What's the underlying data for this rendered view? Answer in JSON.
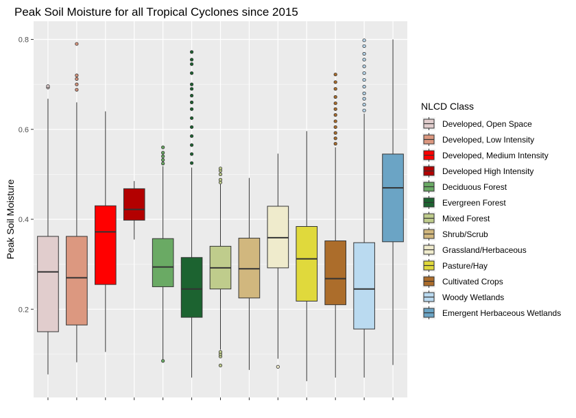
{
  "chart_data": {
    "type": "boxplot",
    "title": "Peak Soil Moisture for all Tropical Cyclones since 2015",
    "xlabel": "",
    "ylabel": "Peak Soil Moisture",
    "ylim": [
      0.0,
      0.83
    ],
    "yticks": [
      0.2,
      0.4,
      0.6,
      0.8
    ],
    "ytick_labels": [
      "0.2",
      "0.4",
      "0.6",
      "0.8"
    ],
    "grid": true,
    "panel_background": "#ebebeb",
    "grid_color": "#ffffff",
    "legend": {
      "title": "NLCD Class",
      "placement": "right"
    },
    "series": [
      {
        "name": "Developed, Open Space",
        "color": "#e1cdcd",
        "whisker_low": 0.055,
        "q1": 0.15,
        "median": 0.283,
        "q3": 0.362,
        "whisker_high": 0.668,
        "outliers": [
          0.693,
          0.696
        ]
      },
      {
        "name": "Developed, Low Intensity",
        "color": "#dc9880",
        "whisker_low": 0.082,
        "q1": 0.165,
        "median": 0.27,
        "q3": 0.362,
        "whisker_high": 0.66,
        "outliers": [
          0.688,
          0.7,
          0.712,
          0.72,
          0.79
        ]
      },
      {
        "name": "Developed, Medium Intensity",
        "color": "#ff0000",
        "whisker_low": 0.105,
        "q1": 0.255,
        "median": 0.372,
        "q3": 0.43,
        "whisker_high": 0.64,
        "outliers": []
      },
      {
        "name": "Developed High Intensity",
        "color": "#b30000",
        "whisker_low": 0.355,
        "q1": 0.398,
        "median": 0.422,
        "q3": 0.468,
        "whisker_high": 0.485,
        "outliers": []
      },
      {
        "name": "Deciduous Forest",
        "color": "#6aaa64",
        "whisker_low": 0.085,
        "q1": 0.25,
        "median": 0.294,
        "q3": 0.357,
        "whisker_high": 0.518,
        "outliers": [
          0.085,
          0.524,
          0.532,
          0.54,
          0.548,
          0.56
        ]
      },
      {
        "name": "Evergreen Forest",
        "color": "#1c6330",
        "whisker_low": 0.048,
        "q1": 0.182,
        "median": 0.245,
        "q3": 0.315,
        "whisker_high": 0.515,
        "outliers": [
          0.525,
          0.545,
          0.565,
          0.585,
          0.605,
          0.625,
          0.645,
          0.66,
          0.675,
          0.69,
          0.7,
          0.725,
          0.745,
          0.755,
          0.772
        ]
      },
      {
        "name": "Mixed Forest",
        "color": "#bfcc8c",
        "whisker_low": 0.11,
        "q1": 0.245,
        "median": 0.292,
        "q3": 0.34,
        "whisker_high": 0.478,
        "outliers": [
          0.075,
          0.095,
          0.1,
          0.105,
          0.482,
          0.488,
          0.5,
          0.508,
          0.513
        ]
      },
      {
        "name": "Shrub/Scrub",
        "color": "#d1b77e",
        "whisker_low": 0.065,
        "q1": 0.225,
        "median": 0.29,
        "q3": 0.358,
        "whisker_high": 0.492,
        "outliers": []
      },
      {
        "name": "Grassland/Herbaceous",
        "color": "#efebcc",
        "whisker_low": 0.09,
        "q1": 0.292,
        "median": 0.359,
        "q3": 0.429,
        "whisker_high": 0.546,
        "outliers": [
          0.072
        ]
      },
      {
        "name": "Pasture/Hay",
        "color": "#e0d93c",
        "whisker_low": 0.04,
        "q1": 0.218,
        "median": 0.312,
        "q3": 0.384,
        "whisker_high": 0.596,
        "outliers": []
      },
      {
        "name": "Cultivated Crops",
        "color": "#ac6d2b",
        "whisker_low": 0.048,
        "q1": 0.21,
        "median": 0.268,
        "q3": 0.352,
        "whisker_high": 0.56,
        "outliers": [
          0.568,
          0.58,
          0.592,
          0.605,
          0.618,
          0.632,
          0.645,
          0.658,
          0.672,
          0.69,
          0.705,
          0.722
        ]
      },
      {
        "name": "Woody Wetlands",
        "color": "#badaf0",
        "whisker_low": 0.048,
        "q1": 0.156,
        "median": 0.245,
        "q3": 0.348,
        "whisker_high": 0.635,
        "outliers": [
          0.642,
          0.655,
          0.668,
          0.68,
          0.695,
          0.71,
          0.725,
          0.74,
          0.755,
          0.768,
          0.785,
          0.798
        ]
      },
      {
        "name": "Emergent Herbaceous Wetlands",
        "color": "#6ba4c5",
        "whisker_low": 0.076,
        "q1": 0.35,
        "median": 0.47,
        "q3": 0.545,
        "whisker_high": 0.8,
        "outliers": []
      }
    ]
  }
}
